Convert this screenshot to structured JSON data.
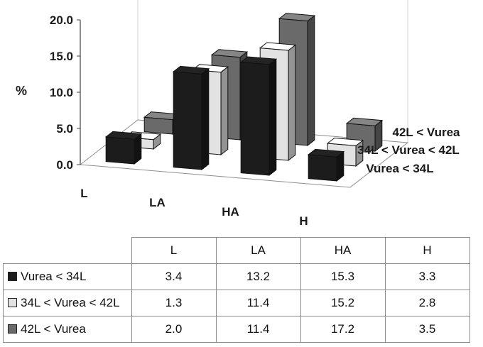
{
  "chart_data": {
    "type": "bar",
    "categories": [
      "L",
      "LA",
      "HA",
      "H"
    ],
    "series": [
      {
        "name": "Vurea < 34L",
        "values": [
          3.4,
          13.2,
          15.3,
          3.3
        ],
        "color": "#1c1c1c"
      },
      {
        "name": "34L < Vurea < 42L",
        "values": [
          1.3,
          11.4,
          15.2,
          2.8
        ],
        "color": "#e2e2e2"
      },
      {
        "name": "42L < Vurea",
        "values": [
          2.0,
          11.4,
          17.2,
          3.5
        ],
        "color": "#6a6a6a"
      }
    ],
    "ylabel": "%",
    "yticks": [
      "0.0",
      "5.0",
      "10.0",
      "15.0",
      "20.0"
    ],
    "ylim": [
      0,
      20
    ],
    "grid": false,
    "legend": "data-table"
  },
  "table": {
    "headers": [
      "L",
      "LA",
      "HA",
      "H"
    ],
    "rows": [
      {
        "label": "Vurea < 34L",
        "values": [
          "3.4",
          "13.2",
          "15.3",
          "3.3"
        ]
      },
      {
        "label": "34L < Vurea < 42L",
        "values": [
          "1.3",
          "11.4",
          "15.2",
          "2.8"
        ]
      },
      {
        "label": "42L < Vurea",
        "values": [
          "2.0",
          "11.4",
          "17.2",
          "3.5"
        ]
      }
    ]
  }
}
